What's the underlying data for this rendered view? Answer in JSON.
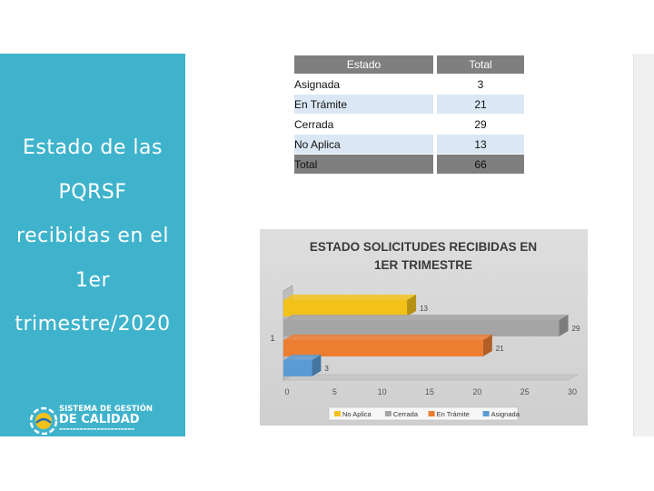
{
  "sidebar": {
    "title_lines": [
      "Estado de las",
      "PQRSF",
      "recibidas en el",
      "1er",
      "trimestre/2020"
    ],
    "logo": {
      "line1": "SISTEMA DE GESTIÓN",
      "line2": "DE CALIDAD",
      "icon": "quality-system-logo-icon"
    }
  },
  "table": {
    "headers": [
      "Estado",
      "Total"
    ],
    "rows": [
      {
        "estado": "Asignada",
        "total": "3"
      },
      {
        "estado": "En Trámite",
        "total": "21"
      },
      {
        "estado": "Cerrada",
        "total": "29"
      },
      {
        "estado": "No Aplica",
        "total": "13"
      }
    ],
    "total_row": {
      "estado": "Total",
      "total": "66"
    }
  },
  "colors": {
    "sidebar": "#3fb3cc",
    "header": "#7f7f7f",
    "row_alt": "#dbe7f4",
    "no_aplica": "#f2c21b",
    "cerrada": "#a5a5a5",
    "en_tramite": "#ed7d31",
    "asignada": "#5b9bd5"
  },
  "chart_data": {
    "type": "bar",
    "orientation": "horizontal",
    "style": "3d-clustered",
    "title": "ESTADO SOLICITUDES RECIBIDAS EN 1ER TRIMESTRE",
    "categories": [
      "1"
    ],
    "series": [
      {
        "name": "No Aplica",
        "values": [
          13
        ],
        "color": "#f2c21b"
      },
      {
        "name": "Cerrada",
        "values": [
          29
        ],
        "color": "#a5a5a5"
      },
      {
        "name": "En Trámite",
        "values": [
          21
        ],
        "color": "#ed7d31"
      },
      {
        "name": "Asignada",
        "values": [
          3
        ],
        "color": "#5b9bd5"
      }
    ],
    "xlim": [
      0,
      30
    ],
    "xticks": [
      0,
      5,
      10,
      15,
      20,
      25,
      30
    ],
    "xlabel": "",
    "ylabel": "",
    "legend": "bottom",
    "grid": false,
    "data_labels": true
  }
}
